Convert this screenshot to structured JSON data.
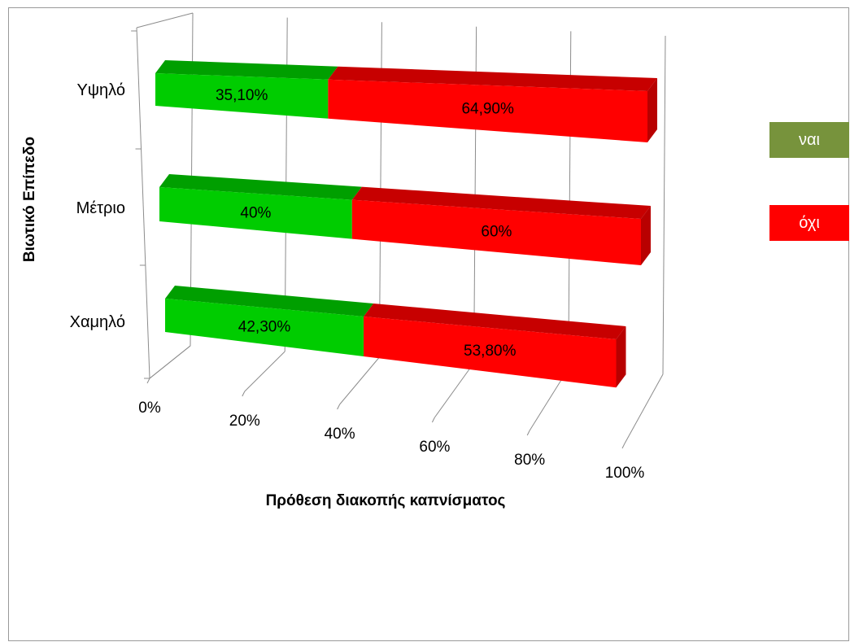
{
  "chart_data": {
    "type": "bar",
    "orientation": "horizontal",
    "stacked": true,
    "style": "3d",
    "categories": [
      "Υψηλό",
      "Μέτριο",
      "Χαμηλό"
    ],
    "series": [
      {
        "name": "ναι",
        "color": "#00cc00",
        "values": [
          35.1,
          40,
          42.3
        ],
        "labels": [
          "35,10%",
          "40%",
          "42,30%"
        ]
      },
      {
        "name": "όχι",
        "color": "#ff0000",
        "values": [
          64.9,
          60,
          53.8
        ],
        "labels": [
          "64,90%",
          "60%",
          "53,80%"
        ]
      }
    ],
    "xlim": [
      0,
      100
    ],
    "x_ticks": [
      "0%",
      "20%",
      "40%",
      "60%",
      "80%",
      "100%"
    ],
    "xlabel": "Πρόθεση διακοπής καπνίσματος",
    "ylabel": "Βιωτικό Επίπεδο",
    "grid": true,
    "legend_position": "right"
  },
  "legend": [
    {
      "label": "ναι",
      "color": "#77933c"
    },
    {
      "label": "όχι",
      "color": "#ff0000"
    }
  ]
}
